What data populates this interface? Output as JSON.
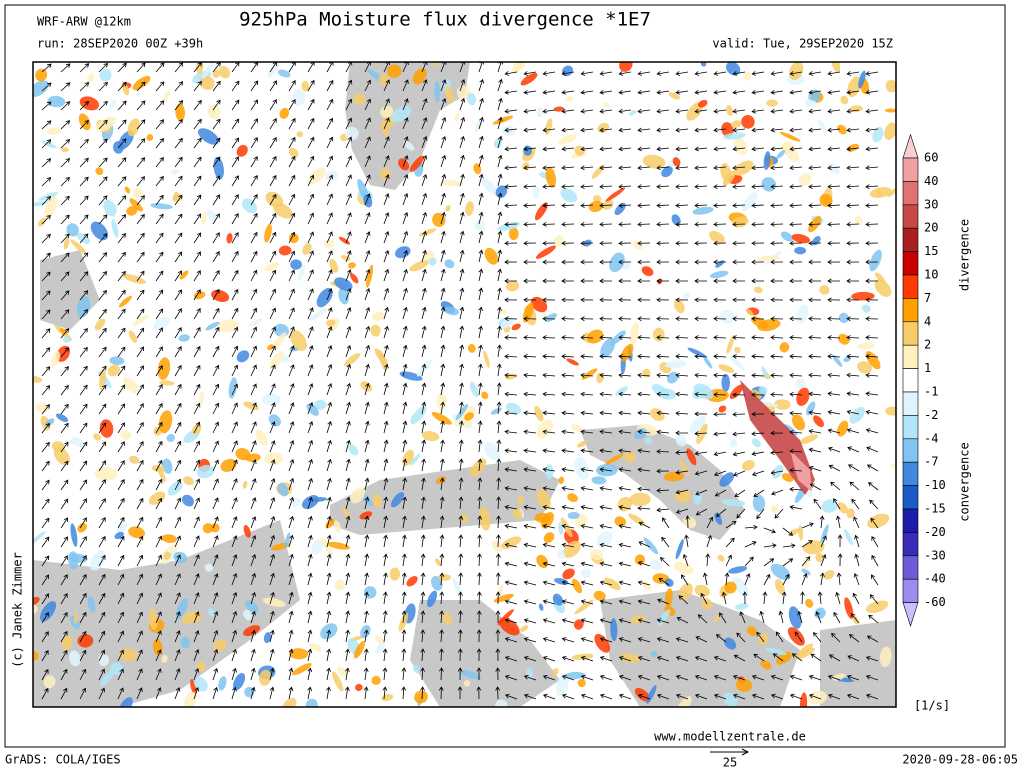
{
  "header": {
    "model": "WRF-ARW @12km",
    "title": "925hPa Moisture flux divergence *1E7",
    "run": "run: 28SEP2020 00Z +39h",
    "valid": "valid: Tue, 29SEP2020 15Z"
  },
  "colorbar": {
    "levels": [
      60,
      40,
      30,
      20,
      15,
      10,
      7,
      4,
      2,
      1,
      -1,
      -2,
      -4,
      -7,
      -10,
      -15,
      -20,
      -30,
      -40,
      -60
    ],
    "colors": [
      "#f8d0d0",
      "#f0a0a0",
      "#e07272",
      "#c84848",
      "#a82020",
      "#c80000",
      "#ff3a00",
      "#ffa000",
      "#f8cc68",
      "#fff0c0",
      "#ffffff",
      "#e0f4ff",
      "#b0e6f8",
      "#80c4f0",
      "#4088e0",
      "#1c5cc8",
      "#1c1ca8",
      "#3a2cb8",
      "#6c5cd8",
      "#9c8cf0",
      "#c8c0ff"
    ],
    "top_label": "divergence",
    "bottom_label": "convergence",
    "unit": "[1/s]"
  },
  "footer": {
    "credit": "(c) Janek Zimmer",
    "website": "www.modellzentrale.de",
    "reference_vector": 25,
    "software": "GrADS: COLA/IGES",
    "timestamp": "2020-09-28-06:05"
  }
}
